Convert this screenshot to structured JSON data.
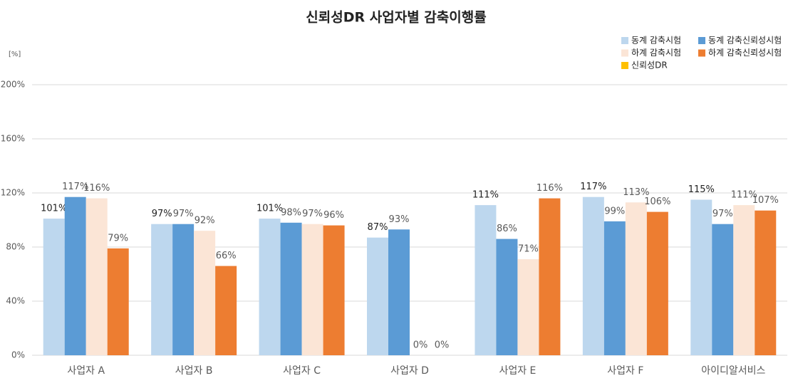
{
  "chart_data": {
    "type": "bar",
    "title": "신뢰성DR 사업자별 감축이행률",
    "y_axis_label": "[%]",
    "categories": [
      "사업자 A",
      "사업자 B",
      "사업자 C",
      "사업자 D",
      "사업자 E",
      "사업자 F",
      "아이디알서비스"
    ],
    "series": [
      {
        "name": "동계 감축시험",
        "color": "#bdd7ee",
        "values": [
          101,
          97,
          101,
          87,
          111,
          117,
          115
        ],
        "value_labels": [
          "101%",
          "97%",
          "101%",
          "87%",
          "111%",
          "117%",
          "115%"
        ]
      },
      {
        "name": "동계 감축신뢰성시험",
        "color": "#5b9bd5",
        "values": [
          117,
          97,
          98,
          93,
          86,
          99,
          97
        ],
        "value_labels": [
          "117%",
          "97%",
          "98%",
          "93%",
          "86%",
          "99%",
          "97%"
        ]
      },
      {
        "name": "하계 감축시험",
        "color": "#fbe5d6",
        "values": [
          116,
          92,
          97,
          0,
          71,
          113,
          111
        ],
        "value_labels": [
          "116%",
          "92%",
          "97%",
          "0%",
          "71%",
          "113%",
          "111%"
        ]
      },
      {
        "name": "하계 감축신뢰성시험",
        "color": "#ed7d31",
        "values": [
          79,
          66,
          96,
          0,
          116,
          106,
          107
        ],
        "value_labels": [
          "79%",
          "66%",
          "96%",
          "0%",
          "116%",
          "106%",
          "107%"
        ]
      },
      {
        "name": "신뢰성DR",
        "color": "#ffc000",
        "values": [
          null,
          null,
          null,
          null,
          null,
          null,
          null
        ]
      }
    ],
    "ylim": [
      0,
      200
    ],
    "yticks": [
      {
        "value": 0,
        "label": "0%"
      },
      {
        "value": 40,
        "label": "40%"
      },
      {
        "value": 80,
        "label": "80%"
      },
      {
        "value": 120,
        "label": "120%"
      },
      {
        "value": 160,
        "label": "160%"
      },
      {
        "value": 200,
        "label": "200%"
      }
    ],
    "grid": true,
    "legend": "top-right"
  }
}
